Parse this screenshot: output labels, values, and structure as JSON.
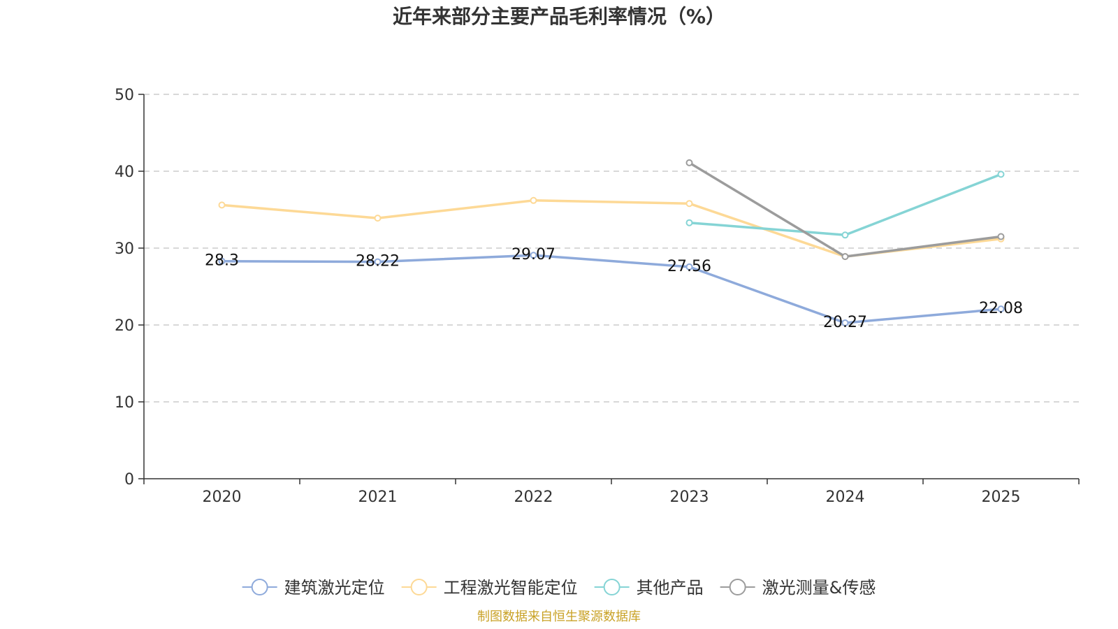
{
  "chart_data": {
    "type": "line",
    "title": "近年来部分主要产品毛利率情况（%）",
    "xlabel": "",
    "ylabel": "",
    "categories": [
      "2020",
      "2021",
      "2022",
      "2023",
      "2024",
      "2025"
    ],
    "ylim": [
      0,
      50
    ],
    "yticks": [
      0,
      10,
      20,
      30,
      40,
      50
    ],
    "grid": true,
    "legend_position": "bottom",
    "series": [
      {
        "name": "建筑激光定位",
        "color": "#8eaadb",
        "values": [
          28.3,
          28.22,
          29.07,
          27.56,
          20.27,
          22.08
        ],
        "labels": [
          "28.3",
          "28.22",
          "29.07",
          "27.56",
          "20.27",
          "22.08"
        ]
      },
      {
        "name": "工程激光智能定位",
        "color": "#fdd996",
        "values": [
          35.6,
          33.9,
          36.2,
          35.8,
          28.9,
          31.2
        ],
        "labels": null
      },
      {
        "name": "其他产品",
        "color": "#85d4d5",
        "values": [
          null,
          null,
          null,
          33.3,
          31.7,
          39.6
        ],
        "labels": null
      },
      {
        "name": "激光测量&传感",
        "color": "#9c9c9c",
        "values": [
          null,
          null,
          null,
          41.1,
          28.9,
          31.5
        ],
        "labels": null
      }
    ],
    "source": "制图数据来自恒生聚源数据库",
    "source_color": "#c9a227"
  }
}
